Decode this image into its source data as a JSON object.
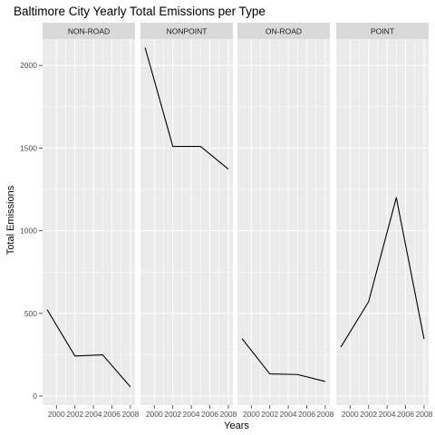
{
  "chart_data": {
    "type": "line",
    "title": "Baltimore City Yearly Total Emissions per Type",
    "xlabel": "Years",
    "ylabel": "Total Emissions",
    "x": [
      1999,
      2002,
      2005,
      2008
    ],
    "xticks": [
      2000,
      2002,
      2004,
      2006,
      2008
    ],
    "xlim": [
      1998.5,
      2008.5
    ],
    "yticks": [
      0,
      500,
      1000,
      1500,
      2000
    ],
    "ylim": [
      -55,
      2160
    ],
    "grid": true,
    "panel_background": "#EBEBEB",
    "strip_background": "#D9D9D9",
    "line_color": "#000000",
    "panels": [
      {
        "name": "NON-ROAD",
        "values": [
          522,
          242,
          249,
          55
        ]
      },
      {
        "name": "NONPOINT",
        "values": [
          2108,
          1510,
          1510,
          1373
        ]
      },
      {
        "name": "ON-ROAD",
        "values": [
          347,
          134,
          130,
          88
        ]
      },
      {
        "name": "POINT",
        "values": [
          296,
          570,
          1200,
          345
        ]
      }
    ]
  }
}
